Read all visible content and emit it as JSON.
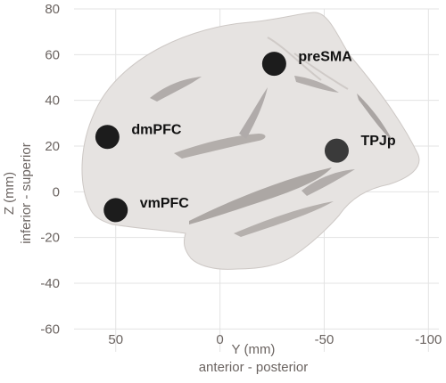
{
  "figure": {
    "xlabel": "Y (mm)",
    "xlabel_sub": "anterior - posterior",
    "ylabel": "Z (mm)",
    "ylabel_sub": "inferior - superior",
    "colors": {
      "grid": "#e3e3e3",
      "axis_text": "#6b6461",
      "brain_fill": "#e6e3e1",
      "brain_edge": "#cdc8c5",
      "sulcus": "#a9a4a1",
      "marker": "#1c1c1c",
      "marker_tpjp": "#3a3a3a",
      "label": "#111111"
    }
  },
  "chart_data": {
    "type": "scatter",
    "xlim": [
      70,
      -105
    ],
    "ylim": [
      -70,
      80
    ],
    "x_reversed": true,
    "xticks": [
      50,
      0,
      -50,
      -100
    ],
    "xtick_labels": [
      "50",
      "0",
      "-50",
      "-100"
    ],
    "yticks": [
      80,
      60,
      40,
      20,
      0,
      -20,
      -40,
      -60
    ],
    "ytick_labels": [
      "80",
      "60",
      "40",
      "20",
      "0",
      "-20",
      "-40",
      "-60"
    ],
    "grid": true,
    "background": "sagittal brain surface",
    "points": [
      {
        "label": "preSMA",
        "y_mm": -26,
        "z_mm": 56
      },
      {
        "label": "dmPFC",
        "y_mm": 54,
        "z_mm": 24
      },
      {
        "label": "vmPFC",
        "y_mm": 50,
        "z_mm": -8
      },
      {
        "label": "TPJp",
        "y_mm": -56,
        "z_mm": 18
      }
    ]
  }
}
